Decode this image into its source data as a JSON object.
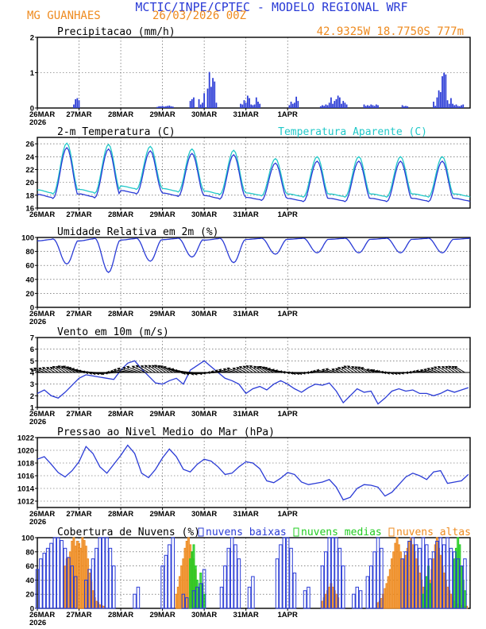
{
  "header": {
    "title": "MCTIC/INPE/CPTEC - MODELO REGIONAL WRF",
    "station": "MG GUANHAES",
    "run": "26/03/2026 00Z",
    "coords": "42.9325W 18.7750S 777m",
    "colors": {
      "title": "#2a3bd6",
      "orange": "#ee8a1e",
      "cyan": "#20c8c8"
    }
  },
  "dates": [
    "26MAR",
    "27MAR",
    "28MAR",
    "29MAR",
    "30MAR",
    "31MAR",
    "1APR"
  ],
  "year": "2026",
  "chart_data": [
    {
      "id": "precip",
      "type": "bar",
      "title": "Precipitacao (mm/h)",
      "ylim": [
        0,
        2
      ],
      "yticks": [
        "0",
        "1",
        "2"
      ],
      "x_unit": "hours since 26MAR 00Z",
      "x": [
        21,
        22,
        23,
        24,
        69,
        70,
        71,
        72,
        73,
        74,
        75,
        76,
        77,
        78,
        88,
        89,
        90,
        93,
        94,
        95,
        96,
        98,
        99,
        100,
        101,
        102,
        103,
        117,
        118,
        119,
        120,
        121,
        122,
        123,
        124,
        125,
        126,
        127,
        128,
        145,
        146,
        147,
        148,
        149,
        150,
        163,
        164,
        165,
        166,
        167,
        168,
        169,
        170,
        171,
        172,
        173,
        174,
        175,
        176,
        177,
        178,
        188,
        189,
        190,
        191,
        192,
        193,
        194,
        195,
        196,
        210,
        211,
        212,
        213,
        228,
        229,
        230,
        231,
        232,
        233,
        234,
        235,
        236,
        237,
        238,
        239,
        240,
        241,
        242,
        243,
        244,
        245
      ],
      "values": [
        0.1,
        0.25,
        0.28,
        0.22,
        0.03,
        0.05,
        0.05,
        0.06,
        0.04,
        0.05,
        0.06,
        0.07,
        0.05,
        0.04,
        0.2,
        0.25,
        0.3,
        0.25,
        0.1,
        0.15,
        0.42,
        0.55,
        1.02,
        0.6,
        0.85,
        0.75,
        0.15,
        0.12,
        0.1,
        0.22,
        0.15,
        0.35,
        0.28,
        0.1,
        0.08,
        0.1,
        0.3,
        0.18,
        0.12,
        0.08,
        0.18,
        0.12,
        0.15,
        0.32,
        0.2,
        0.05,
        0.08,
        0.06,
        0.1,
        0.08,
        0.15,
        0.3,
        0.12,
        0.2,
        0.25,
        0.35,
        0.3,
        0.12,
        0.2,
        0.15,
        0.1,
        0.1,
        0.06,
        0.08,
        0.06,
        0.1,
        0.08,
        0.06,
        0.1,
        0.08,
        0.08,
        0.05,
        0.06,
        0.05,
        0.18,
        0.06,
        0.3,
        0.5,
        0.45,
        0.9,
        1.0,
        0.95,
        0.22,
        0.12,
        0.28,
        0.12,
        0.08,
        0.1,
        0.06,
        0.05,
        0.08,
        0.1
      ]
    },
    {
      "id": "temp",
      "type": "line",
      "title": "2-m Temperatura (C)",
      "legend": "Temperatura Aparente (C)",
      "ylim": [
        16,
        27
      ],
      "yticks": [
        "16",
        "18",
        "20",
        "22",
        "24",
        "26"
      ],
      "daily_min": [
        17.5,
        17.6,
        18.2,
        17.8,
        17.4,
        17.2,
        17.0
      ],
      "daily_max": [
        25.4,
        25.2,
        24.9,
        24.5,
        24.3,
        23.0,
        23.3
      ],
      "apparent_offset": 0.7
    },
    {
      "id": "rh",
      "type": "line",
      "title": "Umidade Relativa em 2m (%)",
      "ylim": [
        0,
        100
      ],
      "yticks": [
        "0",
        "20",
        "40",
        "60",
        "80",
        "100"
      ],
      "daily_min": [
        62,
        50,
        66,
        72,
        64,
        76,
        78
      ],
      "daily_max": [
        98,
        99,
        99,
        99,
        99,
        99,
        99
      ]
    },
    {
      "id": "wind",
      "type": "line",
      "title": "Vento em 10m (m/s)",
      "ylim": [
        1,
        7
      ],
      "yticks": [
        "1",
        "2",
        "3",
        "4",
        "5",
        "6",
        "7"
      ],
      "arrow_baseline": 4.0,
      "x_unit": "hours since 26MAR 00Z",
      "x": [
        0,
        4,
        8,
        12,
        16,
        20,
        24,
        28,
        32,
        36,
        40,
        44,
        48,
        52,
        56,
        60,
        64,
        68,
        72,
        76,
        80,
        84,
        88,
        92,
        96,
        100,
        104,
        108,
        112,
        116,
        120,
        124,
        128,
        132,
        136,
        140,
        144,
        148,
        152,
        156,
        160,
        164,
        168,
        172,
        176,
        180,
        184,
        188,
        192,
        196,
        200,
        204,
        208,
        212,
        216,
        220,
        224,
        228,
        232,
        236,
        240,
        244,
        248
      ],
      "values": [
        2.2,
        2.5,
        2.0,
        1.8,
        2.3,
        2.9,
        3.5,
        3.8,
        3.7,
        3.6,
        3.5,
        3.4,
        4.2,
        4.8,
        5.0,
        4.3,
        3.7,
        3.1,
        3.0,
        3.3,
        3.5,
        3.0,
        4.2,
        4.6,
        5.0,
        4.5,
        4.0,
        3.5,
        3.3,
        3.0,
        2.2,
        2.6,
        2.8,
        2.5,
        3.0,
        3.3,
        3.0,
        2.6,
        2.3,
        2.7,
        3.0,
        2.9,
        3.1,
        2.4,
        1.4,
        2.0,
        2.6,
        2.3,
        2.4,
        1.3,
        1.8,
        2.4,
        2.6,
        2.4,
        2.5,
        2.2,
        2.2,
        2.0,
        2.2,
        2.5,
        2.3,
        2.5,
        2.7
      ]
    },
    {
      "id": "pressure",
      "type": "line",
      "title": "Pressao ao Nivel Medio do Mar (hPa)",
      "ylim": [
        1011,
        1022
      ],
      "yticks": [
        "1012",
        "1014",
        "1016",
        "1018",
        "1020",
        "1022"
      ],
      "x_unit": "hours since 26MAR 00Z",
      "x": [
        0,
        4,
        8,
        12,
        16,
        20,
        24,
        28,
        32,
        36,
        40,
        44,
        48,
        52,
        56,
        60,
        64,
        68,
        72,
        76,
        80,
        84,
        88,
        92,
        96,
        100,
        104,
        108,
        112,
        116,
        120,
        124,
        128,
        132,
        136,
        140,
        144,
        148,
        152,
        156,
        160,
        164,
        168,
        172,
        176,
        180,
        184,
        188,
        192,
        196,
        200,
        204,
        208,
        212,
        216,
        220,
        224,
        228,
        232,
        236,
        240,
        244,
        248
      ],
      "values": [
        1018.6,
        1019.0,
        1017.8,
        1016.5,
        1015.8,
        1016.8,
        1018.2,
        1020.6,
        1019.5,
        1017.4,
        1016.4,
        1017.8,
        1019.2,
        1020.8,
        1019.5,
        1016.4,
        1015.7,
        1017.0,
        1018.8,
        1020.2,
        1019.0,
        1017.0,
        1016.6,
        1017.8,
        1018.6,
        1018.3,
        1017.4,
        1016.2,
        1016.4,
        1017.4,
        1018.2,
        1018.0,
        1017.1,
        1015.2,
        1014.9,
        1015.6,
        1016.5,
        1016.2,
        1015.0,
        1014.6,
        1014.8,
        1015.0,
        1015.4,
        1014.2,
        1012.2,
        1012.6,
        1014.0,
        1014.6,
        1014.5,
        1014.2,
        1012.8,
        1013.4,
        1014.6,
        1015.8,
        1016.4,
        1016.0,
        1015.4,
        1016.6,
        1016.8,
        1014.8,
        1015.0,
        1015.2,
        1016.2
      ]
    },
    {
      "id": "clouds",
      "type": "bar",
      "title": "Cobertura de Nuvens (%)",
      "ylim": [
        0,
        100
      ],
      "yticks": [
        "0",
        "20",
        "40",
        "60",
        "80",
        "100"
      ],
      "legend": [
        "nuvens baixas",
        "nuvens medias",
        "nuvens altas"
      ],
      "x_unit": "hours since 26MAR 00Z",
      "series": [
        {
          "name": "nuvens baixas",
          "color": "#2a3bd6",
          "x": [
            0,
            2,
            4,
            6,
            8,
            10,
            12,
            14,
            16,
            18,
            20,
            22,
            28,
            30,
            32,
            34,
            36,
            38,
            40,
            42,
            44,
            56,
            58,
            72,
            74,
            76,
            78,
            84,
            86,
            90,
            92,
            94,
            96,
            106,
            108,
            110,
            112,
            114,
            116,
            122,
            124,
            138,
            140,
            142,
            144,
            146,
            148,
            154,
            156,
            164,
            166,
            168,
            170,
            172,
            174,
            176,
            182,
            184,
            186,
            190,
            192,
            194,
            196,
            198,
            210,
            212,
            214,
            216,
            218,
            220,
            222,
            224,
            226,
            228,
            230,
            232,
            234,
            236,
            238,
            240,
            242,
            244,
            246
          ],
          "values": [
            55,
            70,
            78,
            85,
            92,
            100,
            100,
            96,
            85,
            72,
            60,
            45,
            40,
            55,
            70,
            85,
            100,
            100,
            100,
            85,
            60,
            20,
            30,
            60,
            75,
            90,
            100,
            20,
            15,
            25,
            30,
            35,
            55,
            30,
            60,
            85,
            100,
            90,
            70,
            30,
            45,
            70,
            90,
            100,
            100,
            85,
            50,
            25,
            30,
            60,
            80,
            100,
            100,
            100,
            85,
            60,
            20,
            30,
            25,
            45,
            60,
            80,
            100,
            85,
            70,
            80,
            95,
            100,
            90,
            85,
            100,
            90,
            70,
            80,
            95,
            100,
            90,
            100,
            85,
            80,
            70,
            60,
            70
          ]
        },
        {
          "name": "nuvens medias",
          "color": "#22cc22",
          "x": [
            88,
            89,
            90,
            91,
            92,
            93,
            94,
            95,
            96,
            222,
            223,
            224,
            225,
            226,
            240,
            241,
            242,
            243,
            244,
            245,
            246
          ],
          "values": [
            70,
            80,
            90,
            60,
            40,
            25,
            50,
            35,
            20,
            20,
            30,
            45,
            60,
            35,
            70,
            85,
            100,
            90,
            60,
            40,
            25
          ]
        },
        {
          "name": "nuvens altas",
          "color": "#ee8a1e",
          "x": [
            16,
            17,
            18,
            19,
            20,
            21,
            22,
            23,
            24,
            25,
            26,
            27,
            28,
            29,
            30,
            31,
            32,
            33,
            34,
            35,
            36,
            37,
            38,
            80,
            81,
            82,
            83,
            84,
            85,
            86,
            87,
            88,
            89,
            90,
            91,
            164,
            165,
            166,
            167,
            168,
            169,
            170,
            171,
            172,
            173,
            196,
            197,
            198,
            199,
            200,
            201,
            202,
            203,
            204,
            205,
            206,
            207,
            208,
            209,
            210,
            211,
            212,
            213,
            214,
            215,
            216,
            217,
            218,
            219,
            220,
            221,
            222,
            223,
            224,
            225,
            226,
            227,
            228,
            229,
            230,
            231,
            232,
            233,
            234,
            235,
            236,
            237,
            238,
            239,
            240,
            241,
            242,
            243,
            244,
            245,
            246,
            247
          ],
          "values": [
            60,
            70,
            72,
            80,
            95,
            100,
            88,
            95,
            92,
            85,
            100,
            96,
            88,
            70,
            50,
            38,
            25,
            15,
            10,
            8,
            5,
            4,
            3,
            20,
            30,
            45,
            60,
            70,
            85,
            95,
            100,
            90,
            80,
            70,
            55,
            10,
            15,
            20,
            25,
            30,
            35,
            30,
            25,
            20,
            15,
            8,
            10,
            14,
            20,
            28,
            35,
            45,
            55,
            70,
            80,
            92,
            100,
            90,
            80,
            70,
            60,
            75,
            85,
            95,
            100,
            90,
            80,
            70,
            60,
            50,
            40,
            30,
            20,
            25,
            30,
            40,
            55,
            70,
            90,
            100,
            85,
            75,
            60,
            50,
            40,
            30,
            25,
            20,
            15,
            10,
            8,
            6,
            5,
            4,
            3,
            3,
            3
          ]
        }
      ]
    }
  ]
}
